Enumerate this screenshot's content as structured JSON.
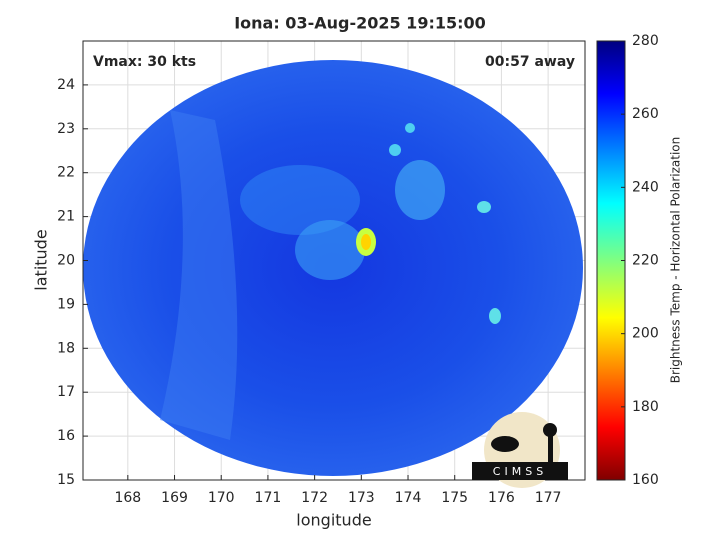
{
  "chart_data": {
    "type": "map",
    "title": "Iona: 03-Aug-2025 19:15:00",
    "annotations": [
      "Vmax: 30 kts",
      "00:57 away"
    ],
    "xlabel": "longitude",
    "ylabel": "latitude",
    "xlim": [
      167.04,
      177.79
    ],
    "ylim": [
      15,
      25
    ],
    "xticks": [
      168,
      169,
      170,
      171,
      172,
      173,
      174,
      175,
      176,
      177
    ],
    "yticks": [
      15,
      16,
      17,
      18,
      19,
      20,
      21,
      22,
      23,
      24
    ],
    "grid": true,
    "colorbar": {
      "label": "Brightness Temp - Horizontal Polarization",
      "lim": [
        160,
        280
      ],
      "ticks": [
        160,
        180,
        200,
        220,
        240,
        260,
        280
      ]
    },
    "logo": "CIMSS"
  }
}
